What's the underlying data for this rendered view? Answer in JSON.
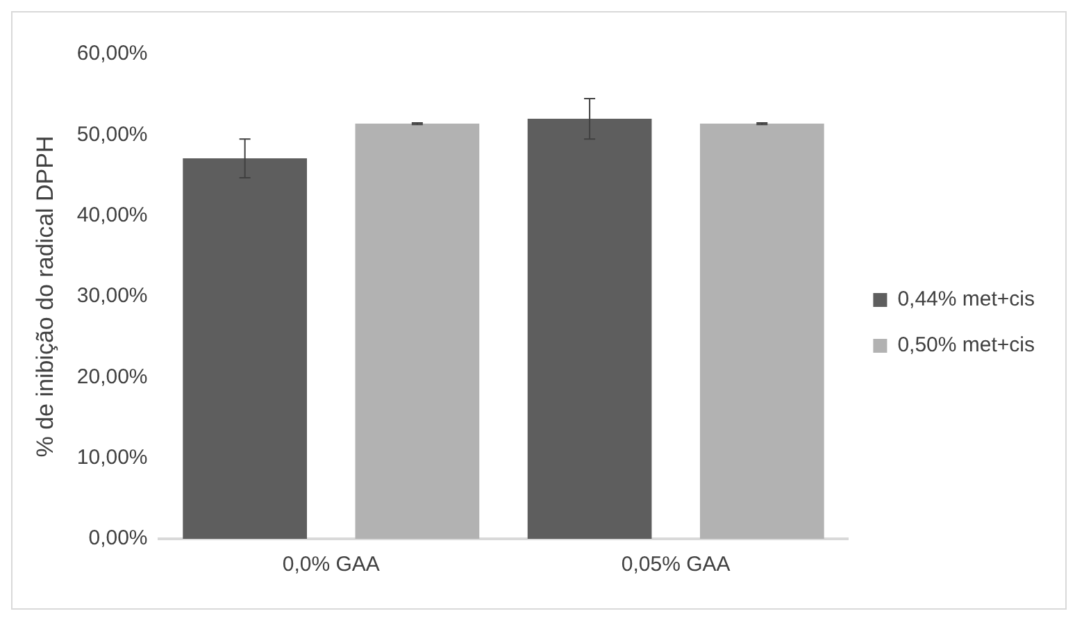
{
  "chart_data": {
    "type": "bar",
    "ylabel": "% de inibição do radical DPPH",
    "categories": [
      "0,0% GAA",
      "0,05% GAA"
    ],
    "series": [
      {
        "name": "0,44% met+cis",
        "color": "#5e5e5e",
        "values": [
          47.1,
          52.0
        ],
        "errors": [
          2.4,
          2.5
        ]
      },
      {
        "name": "0,50% met+cis",
        "color": "#b2b2b2",
        "values": [
          51.4,
          51.4
        ],
        "errors": [
          0.1,
          0.1
        ]
      }
    ],
    "ylim": [
      0,
      60
    ],
    "yticks": [
      {
        "value": 0,
        "label": "0,00%"
      },
      {
        "value": 10,
        "label": "10,00%"
      },
      {
        "value": 20,
        "label": "20,00%"
      },
      {
        "value": 30,
        "label": "30,00%"
      },
      {
        "value": 40,
        "label": "40,00%"
      },
      {
        "value": 50,
        "label": "50,00%"
      },
      {
        "value": 60,
        "label": "60,00%"
      }
    ],
    "grid": false,
    "legend": "right"
  }
}
